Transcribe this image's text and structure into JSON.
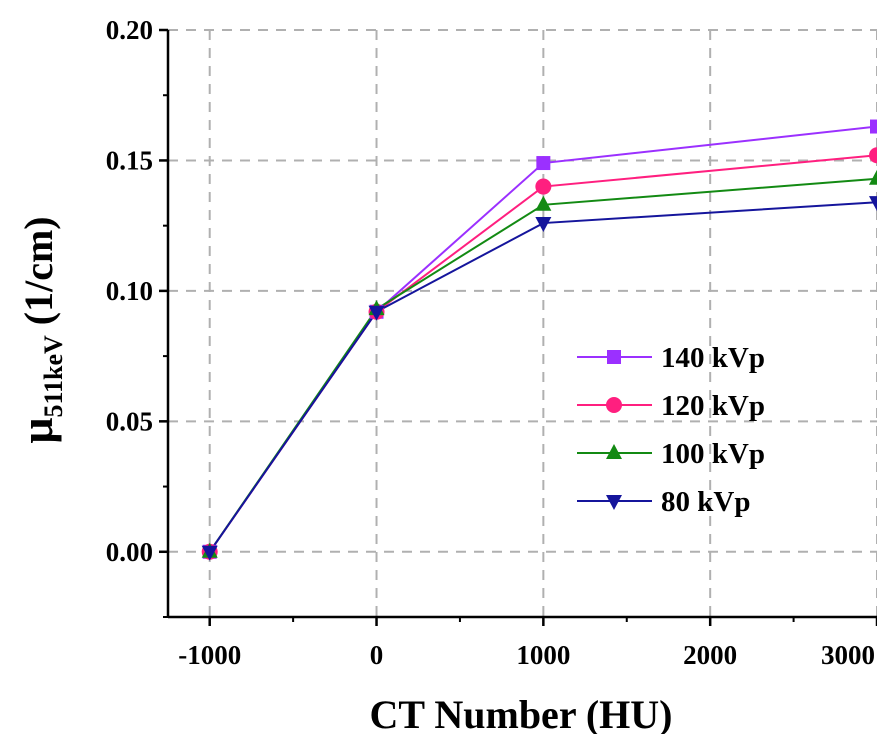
{
  "chart_data": {
    "type": "line",
    "xlabel": "CT Number (HU)",
    "ylabel": {
      "symbol": "μ",
      "subscript": "511keV",
      "unit": " (1/cm)"
    },
    "x": [
      -1000,
      0,
      1000,
      3000
    ],
    "xlim": [
      -1250,
      3000
    ],
    "ylim": [
      -0.025,
      0.2
    ],
    "x_ticks": [
      -1000,
      0,
      1000,
      2000,
      3000
    ],
    "x_tick_labels": [
      "-1000",
      "0",
      "1000",
      "2000",
      "3000"
    ],
    "x_minor_ticks": [
      -500,
      500,
      1500,
      2500
    ],
    "y_ticks": [
      0.0,
      0.05,
      0.1,
      0.15,
      0.2
    ],
    "y_tick_labels": [
      "0.00",
      "0.05",
      "0.10",
      "0.15",
      "0.20"
    ],
    "y_minor_ticks": [
      -0.025,
      0.025,
      0.075,
      0.125,
      0.175
    ],
    "grid": true,
    "legend_position": "right-middle",
    "series": [
      {
        "name": "140 kVp",
        "values": [
          0.0,
          0.092,
          0.149,
          0.163
        ],
        "color": "#9B30FF",
        "marker": "square"
      },
      {
        "name": "120 kVp",
        "values": [
          0.0,
          0.092,
          0.14,
          0.152
        ],
        "color": "#FF1F7F",
        "marker": "circle"
      },
      {
        "name": "100 kVp",
        "values": [
          0.0,
          0.093,
          0.133,
          0.143
        ],
        "color": "#138A13",
        "marker": "triangle-up"
      },
      {
        "name": "80 kVp",
        "values": [
          0.0,
          0.092,
          0.126,
          0.134
        ],
        "color": "#15159C",
        "marker": "triangle-down"
      }
    ]
  }
}
